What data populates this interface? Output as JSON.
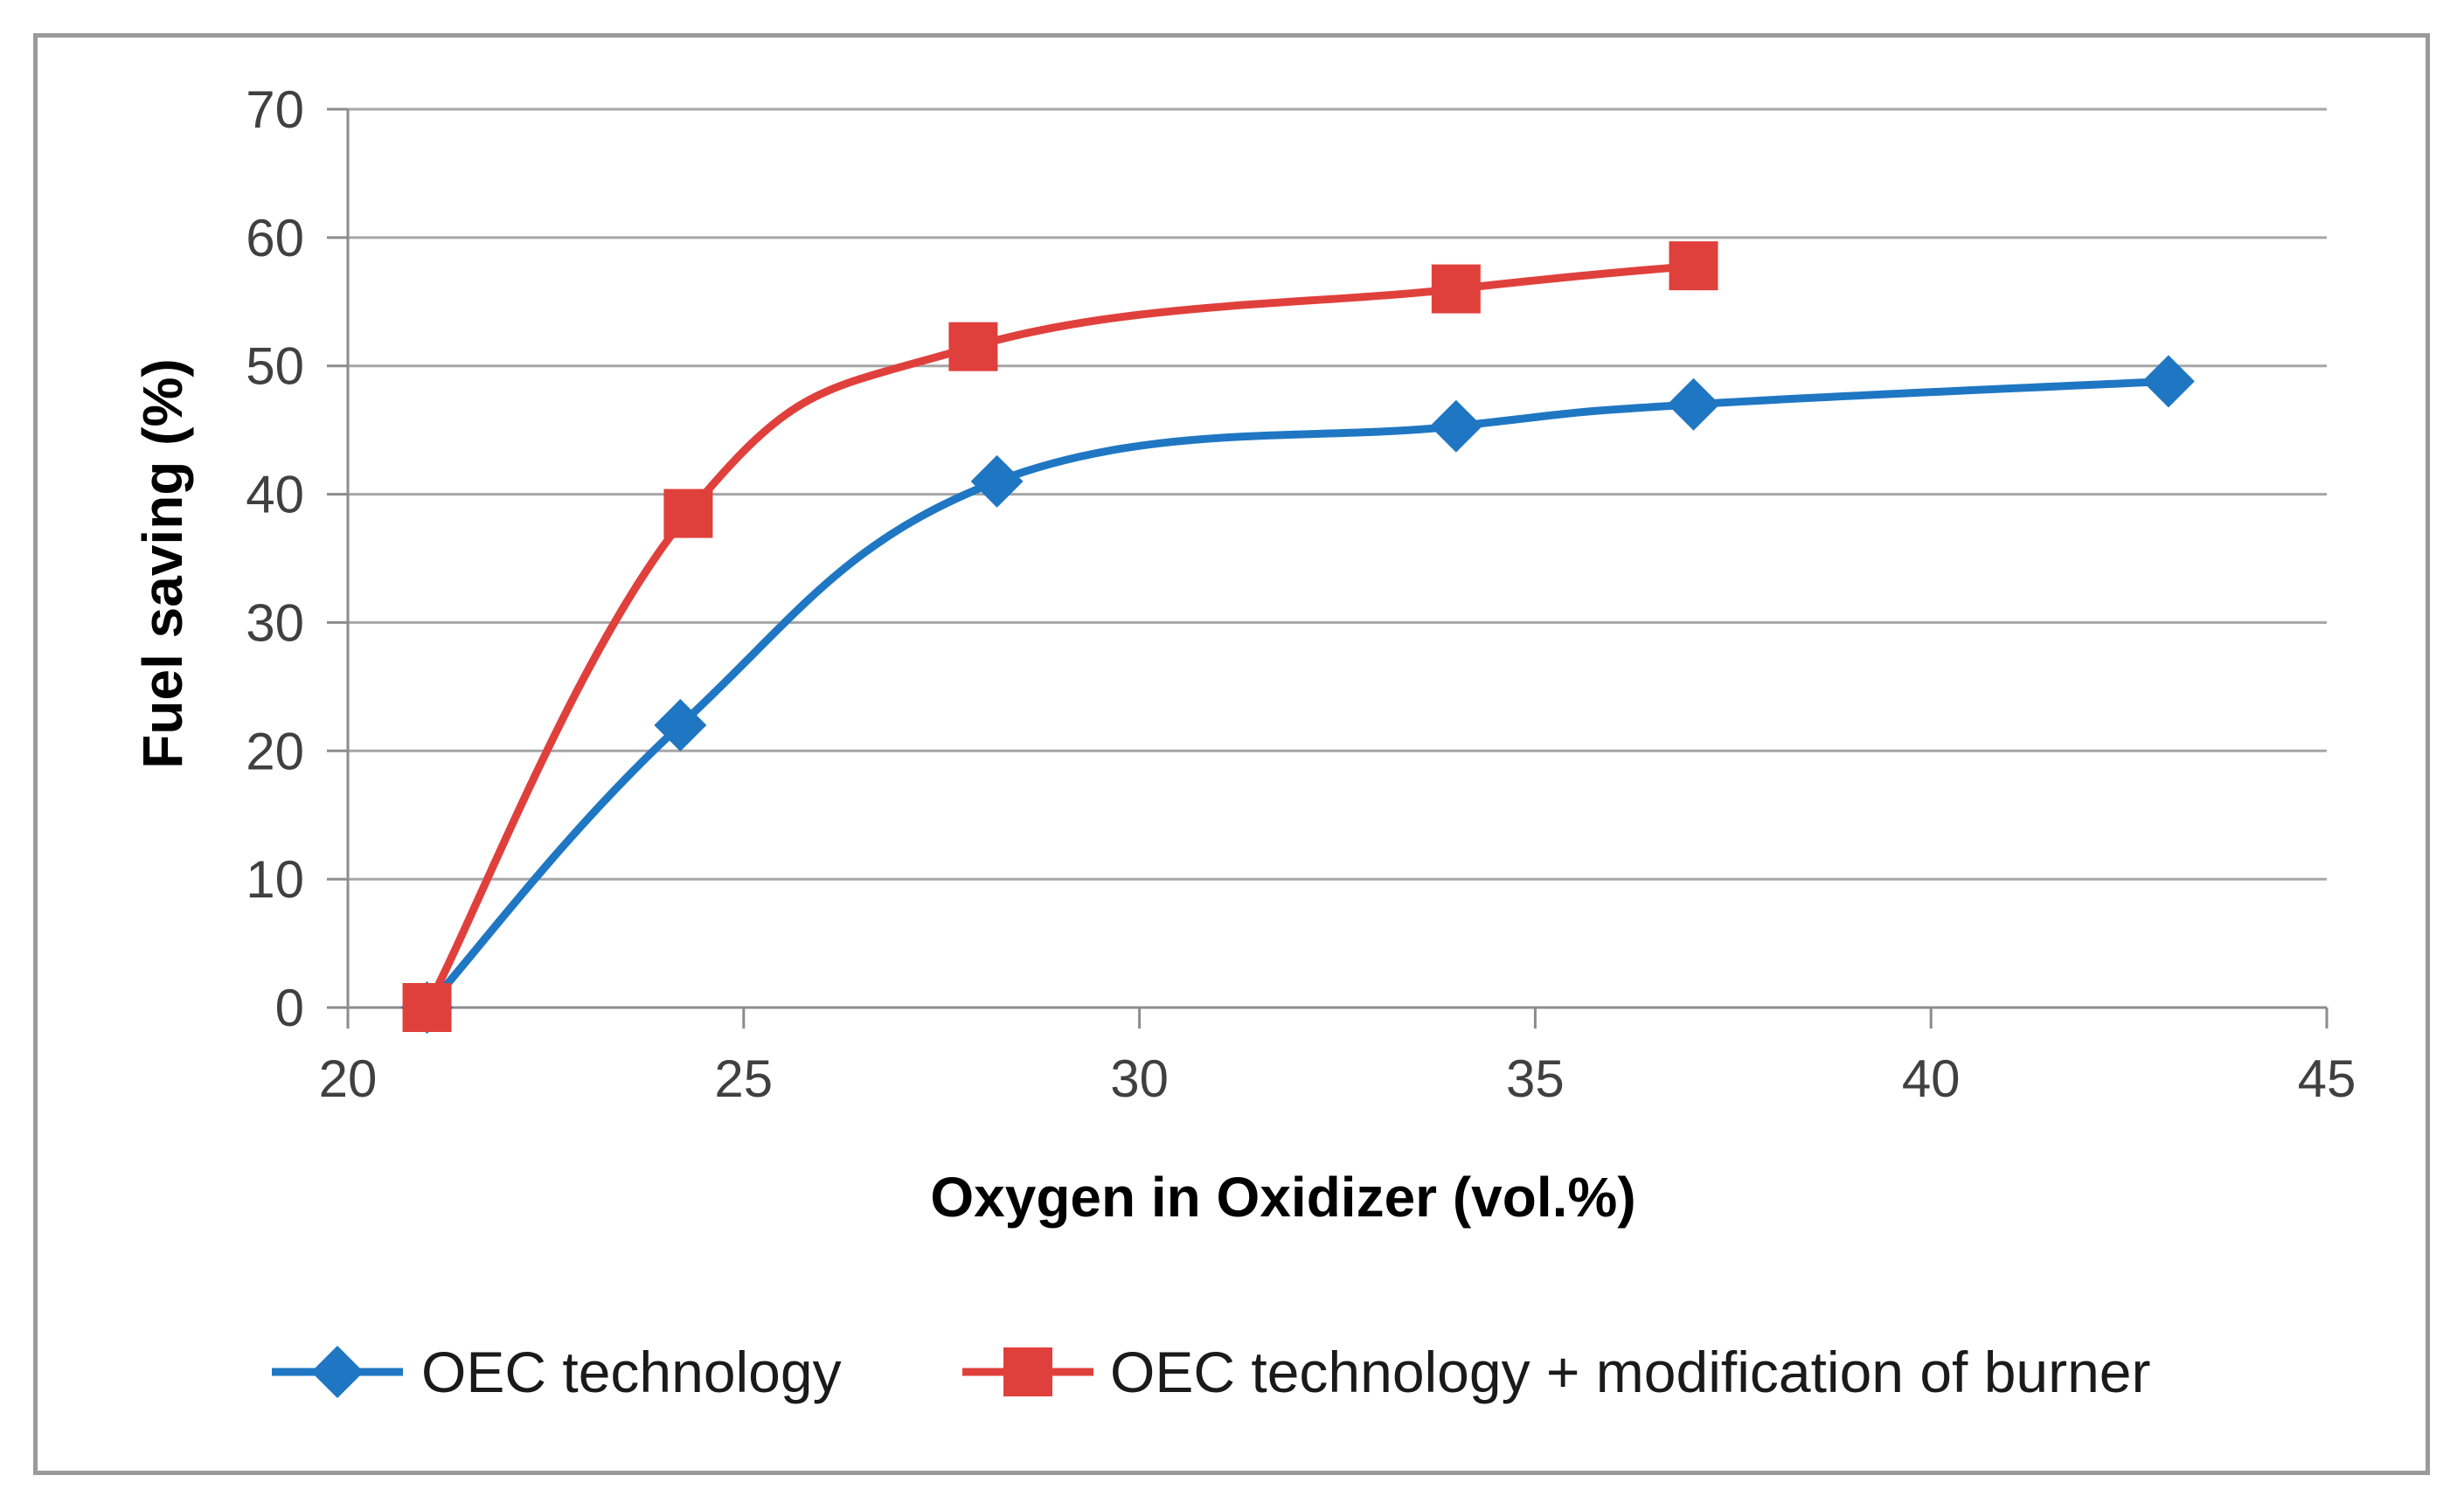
{
  "chart_data": {
    "type": "line",
    "title": "",
    "xlabel": "Oxygen  in Oxidizer (vol.%)",
    "ylabel": "Fuel saving (%)",
    "xlim": [
      20,
      45
    ],
    "ylim": [
      0,
      70
    ],
    "xticks": [
      20,
      25,
      30,
      35,
      40,
      45
    ],
    "yticks": [
      0,
      10,
      20,
      30,
      40,
      50,
      60,
      70
    ],
    "grid": "horizontal",
    "legend": "bottom",
    "series": [
      {
        "name": "OEC technology",
        "color": "#1f77c3",
        "marker": "diamond",
        "x": [
          21,
          24.2,
          28.2,
          34,
          37,
          43
        ],
        "y": [
          0,
          22,
          41,
          45.3,
          47,
          48.8
        ]
      },
      {
        "name": "OEC technology + modification of burner",
        "color": "#e0403c",
        "marker": "square",
        "x": [
          21,
          24.3,
          27.9,
          34,
          37
        ],
        "y": [
          0,
          38.5,
          51.5,
          56,
          57.8
        ]
      }
    ]
  }
}
